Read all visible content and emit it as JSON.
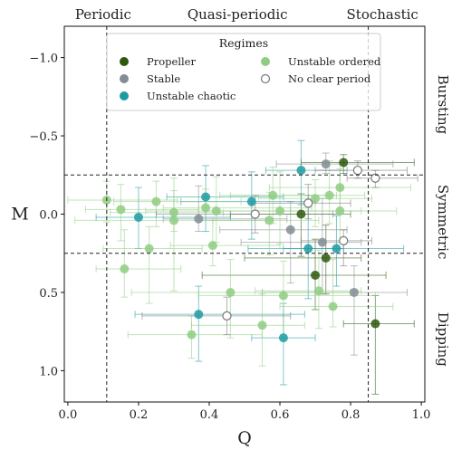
{
  "chart_data": {
    "type": "scatter",
    "xlabel": "Q",
    "ylabel": "M",
    "xlim": [
      -0.01,
      1.01
    ],
    "ylim": [
      1.2,
      -1.2
    ],
    "y_inverted": true,
    "x_ticks": [
      "0.0",
      "0.2",
      "0.4",
      "0.6",
      "0.8",
      "1.0"
    ],
    "x_tick_values": [
      0,
      0.2,
      0.4,
      0.6,
      0.8,
      1.0
    ],
    "y_ticks": [
      "−1.0",
      "−0.5",
      "0.0",
      "0.5",
      "1.0"
    ],
    "y_tick_values": [
      -1.0,
      -0.5,
      0.0,
      0.5,
      1.0
    ],
    "grid": false,
    "top_labels": [
      {
        "text": "Periodic",
        "x": 0.1
      },
      {
        "text": "Quasi-periodic",
        "x": 0.48
      },
      {
        "text": "Stochastic",
        "x": 0.89
      }
    ],
    "right_labels": [
      {
        "text": "Bursting",
        "y": -0.7
      },
      {
        "text": "Symmetric",
        "y": 0.05
      },
      {
        "text": "Dipping",
        "y": 0.8
      }
    ],
    "vlines": [
      0.11,
      0.85
    ],
    "hlines": [
      -0.25,
      0.25
    ],
    "legend": {
      "title": "Regimes",
      "placement": "top-center",
      "entries": [
        {
          "label": "Propeller",
          "series": "propeller"
        },
        {
          "label": "Stable",
          "series": "stable"
        },
        {
          "label": "Unstable chaotic",
          "series": "unstable_chaotic"
        },
        {
          "label": "Unstable ordered",
          "series": "unstable_ordered"
        },
        {
          "label": "No clear period",
          "series": "no_clear_period"
        }
      ]
    },
    "series": [
      {
        "name": "Propeller",
        "key": "propeller",
        "color": "#2e5a0e",
        "filled": true,
        "points": [
          {
            "x": 0.78,
            "y": -0.33,
            "xerr": [
              0.12,
              0.2
            ],
            "yerr": [
              0.05,
              0.07
            ]
          },
          {
            "x": 0.66,
            "y": 0.0,
            "xerr": [
              0.2,
              0.14
            ],
            "yerr": [
              0.13,
              0.27
            ]
          },
          {
            "x": 0.7,
            "y": 0.39,
            "xerr": [
              0.32,
              0.2
            ],
            "yerr": [
              0.23,
              0.22
            ]
          },
          {
            "x": 0.73,
            "y": 0.28,
            "xerr": [
              0.23,
              0.1
            ],
            "yerr": [
              0.21,
              0.23
            ]
          },
          {
            "x": 0.87,
            "y": 0.7,
            "xerr": [
              0.09,
              0.11
            ],
            "yerr": [
              0.18,
              0.45
            ]
          }
        ]
      },
      {
        "name": "Stable",
        "key": "stable",
        "color": "#828d94",
        "filled": true,
        "points": [
          {
            "x": 0.73,
            "y": -0.32,
            "xerr": [
              0.14,
              0.19
            ],
            "yerr": [
              0.07,
              0.06
            ]
          },
          {
            "x": 0.37,
            "y": 0.03,
            "xerr": [
              0.1,
              0.25
            ],
            "yerr": [
              0.21,
              0.08
            ]
          },
          {
            "x": 0.63,
            "y": 0.1,
            "xerr": [
              0.2,
              0.16
            ],
            "yerr": [
              0.18,
              0.34
            ]
          },
          {
            "x": 0.72,
            "y": 0.18,
            "xerr": [
              0.23,
              0.11
            ],
            "yerr": [
              0.28,
              0.33
            ]
          },
          {
            "x": 0.81,
            "y": 0.5,
            "xerr": [
              0.26,
              0.15
            ],
            "yerr": [
              0.17,
              0.4
            ]
          }
        ]
      },
      {
        "name": "Unstable chaotic",
        "key": "unstable_chaotic",
        "color": "#1d9ba2",
        "filled": true,
        "points": [
          {
            "x": 0.66,
            "y": -0.28,
            "xerr": [
              0.1,
              0.13
            ],
            "yerr": [
              0.19,
              0.22
            ]
          },
          {
            "x": 0.39,
            "y": -0.11,
            "xerr": [
              0.11,
              0.22
            ],
            "yerr": [
              0.2,
              0.22
            ]
          },
          {
            "x": 0.52,
            "y": -0.08,
            "xerr": [
              0.2,
              0.18
            ],
            "yerr": [
              0.19,
              0.24
            ]
          },
          {
            "x": 0.2,
            "y": 0.02,
            "xerr": [
              0.12,
              0.26
            ],
            "yerr": [
              0.19,
              0.2
            ]
          },
          {
            "x": 0.68,
            "y": 0.22,
            "xerr": [
              0.17,
              0.1
            ],
            "yerr": [
              0.34,
              0.32
            ]
          },
          {
            "x": 0.76,
            "y": 0.22,
            "xerr": [
              0.15,
              0.19
            ],
            "yerr": [
              0.21,
              0.24
            ]
          },
          {
            "x": 0.37,
            "y": 0.64,
            "xerr": [
              0.18,
              0.3
            ],
            "yerr": [
              0.18,
              0.3
            ]
          },
          {
            "x": 0.61,
            "y": 0.79,
            "xerr": [
              0.09,
              0.09
            ],
            "yerr": [
              0.22,
              0.3
            ]
          }
        ]
      },
      {
        "name": "Unstable ordered",
        "key": "unstable_ordered",
        "color": "#8fcd82",
        "filled": true,
        "points": [
          {
            "x": 0.77,
            "y": -0.17,
            "xerr": [
              0.2,
              0.2
            ],
            "yerr": [
              0.15,
              0.15
            ]
          },
          {
            "x": 0.74,
            "y": -0.12,
            "xerr": [
              0.28,
              0.1
            ],
            "yerr": [
              0.22,
              0.18
            ]
          },
          {
            "x": 0.58,
            "y": -0.12,
            "xerr": [
              0.15,
              0.18
            ],
            "yerr": [
              0.18,
              0.18
            ]
          },
          {
            "x": 0.7,
            "y": -0.1,
            "xerr": [
              0.16,
              0.16
            ],
            "yerr": [
              0.12,
              0.18
            ]
          },
          {
            "x": 0.15,
            "y": -0.03,
            "xerr": [
              0.1,
              0.22
            ],
            "yerr": [
              0.16,
              0.2
            ]
          },
          {
            "x": 0.11,
            "y": -0.09,
            "xerr": [
              0.11,
              0.2
            ],
            "yerr": [
              0.12,
              0.14
            ]
          },
          {
            "x": 0.25,
            "y": -0.08,
            "xerr": [
              0.12,
              0.24
            ],
            "yerr": [
              0.13,
              0.16
            ]
          },
          {
            "x": 0.39,
            "y": -0.04,
            "xerr": [
              0.12,
              0.3
            ],
            "yerr": [
              0.12,
              0.08
            ]
          },
          {
            "x": 0.42,
            "y": -0.02,
            "xerr": [
              0.2,
              0.21
            ],
            "yerr": [
              0.22,
              0.2
            ]
          },
          {
            "x": 0.6,
            "y": -0.02,
            "xerr": [
              0.21,
              0.23
            ],
            "yerr": [
              0.25,
              0.21
            ]
          },
          {
            "x": 0.77,
            "y": -0.02,
            "xerr": [
              0.17,
              0.16
            ],
            "yerr": [
              0.27,
              0.2
            ]
          },
          {
            "x": 0.3,
            "y": 0.04,
            "xerr": [
              0.28,
              0.26
            ],
            "yerr": [
              0.19,
              0.07
            ]
          },
          {
            "x": 0.57,
            "y": 0.04,
            "xerr": [
              0.16,
              0.14
            ],
            "yerr": [
              0.18,
              0.22
            ]
          },
          {
            "x": 0.23,
            "y": 0.22,
            "xerr": [
              0.13,
              0.15
            ],
            "yerr": [
              0.14,
              0.35
            ]
          },
          {
            "x": 0.41,
            "y": 0.2,
            "xerr": [
              0.12,
              0.19
            ],
            "yerr": [
              0.16,
              0.13
            ]
          },
          {
            "x": 0.16,
            "y": 0.35,
            "xerr": [
              0.08,
              0.16
            ],
            "yerr": [
              0.25,
              0.18
            ]
          },
          {
            "x": 0.46,
            "y": 0.5,
            "xerr": [
              0.28,
              0.34
            ],
            "yerr": [
              0.21,
              0.29
            ]
          },
          {
            "x": 0.61,
            "y": 0.52,
            "xerr": [
              0.24,
              0.26
            ],
            "yerr": [
              0.22,
              0.27
            ]
          },
          {
            "x": 0.71,
            "y": 0.49,
            "xerr": [
              0.18,
              0.12
            ],
            "yerr": [
              0.26,
              0.24
            ]
          },
          {
            "x": 0.75,
            "y": 0.59,
            "xerr": [
              0.15,
              0.17
            ],
            "yerr": [
              0.3,
              0.13
            ]
          },
          {
            "x": 0.55,
            "y": 0.71,
            "xerr": [
              0.2,
              0.12
            ],
            "yerr": [
              0.2,
              0.26
            ]
          },
          {
            "x": 0.35,
            "y": 0.77,
            "xerr": [
              0.18,
              0.2
            ],
            "yerr": [
              0.12,
              0.15
            ]
          },
          {
            "x": 0.3,
            "y": -0.01,
            "xerr": [
              0.18,
              0.14
            ],
            "yerr": [
              0.22,
              0.5
            ]
          }
        ]
      },
      {
        "name": "No clear period",
        "key": "no_clear_period",
        "color": "#777777",
        "filled": false,
        "points": [
          {
            "x": 0.82,
            "y": -0.28,
            "xerr": [
              0.12,
              0.14
            ],
            "yerr": [
              0.06,
              0.05
            ]
          },
          {
            "x": 0.87,
            "y": -0.23,
            "xerr": [
              0.08,
              0.12
            ],
            "yerr": [
              0.05,
              0.06
            ]
          },
          {
            "x": 0.68,
            "y": -0.07,
            "xerr": [
              0.16,
              0.12
            ],
            "yerr": [
              0.12,
              0.1
            ]
          },
          {
            "x": 0.53,
            "y": 0.0,
            "xerr": [
              0.28,
              0.22
            ],
            "yerr": [
              0.12,
              0.12
            ]
          },
          {
            "x": 0.78,
            "y": 0.17,
            "xerr": [
              0.12,
              0.08
            ],
            "yerr": [
              0.07,
              0.16
            ]
          },
          {
            "x": 0.45,
            "y": 0.65,
            "xerr": [
              0.24,
              0.18
            ],
            "yerr": [
              0.12,
              0.12
            ]
          }
        ]
      }
    ]
  }
}
